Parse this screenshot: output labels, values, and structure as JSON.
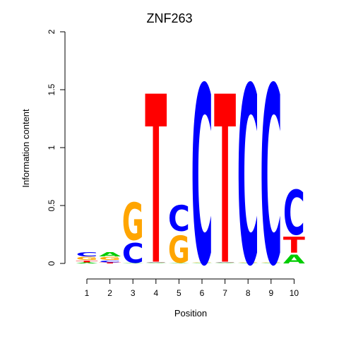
{
  "chart_data": {
    "type": "sequence-logo",
    "title": "ZNF263",
    "xlabel": "Position",
    "ylabel": "Information content",
    "ylim": [
      0,
      2
    ],
    "y_ticks": [
      "0",
      "0.5",
      "1",
      "1.5",
      "2"
    ],
    "positions": [
      "1",
      "2",
      "3",
      "4",
      "5",
      "6",
      "7",
      "8",
      "9",
      "10"
    ],
    "colors": {
      "A": "#00cc00",
      "C": "#0000ff",
      "G": "#ffa500",
      "T": "#ff0000"
    },
    "stacks": [
      [
        {
          "letter": "A",
          "height": 0.01
        },
        {
          "letter": "T",
          "height": 0.02
        },
        {
          "letter": "G",
          "height": 0.03
        },
        {
          "letter": "C",
          "height": 0.04
        }
      ],
      [
        {
          "letter": "T",
          "height": 0.01
        },
        {
          "letter": "C",
          "height": 0.02
        },
        {
          "letter": "G",
          "height": 0.03
        },
        {
          "letter": "A",
          "height": 0.04
        }
      ],
      [
        {
          "letter": "A",
          "height": 0.005
        },
        {
          "letter": "C",
          "height": 0.2
        },
        {
          "letter": "G",
          "height": 0.375
        }
      ],
      [
        {
          "letter": "A",
          "height": 0.005
        },
        {
          "letter": "C",
          "height": 0.005
        },
        {
          "letter": "G",
          "height": 0.005
        },
        {
          "letter": "T",
          "height": 1.7
        }
      ],
      [
        {
          "letter": "A",
          "height": 0.005
        },
        {
          "letter": "G",
          "height": 0.275
        },
        {
          "letter": "C",
          "height": 0.26
        }
      ],
      [
        {
          "letter": "A",
          "height": 0.005
        },
        {
          "letter": "G",
          "height": 0.005
        },
        {
          "letter": "C",
          "height": 1.8
        }
      ],
      [
        {
          "letter": "A",
          "height": 0.005
        },
        {
          "letter": "C",
          "height": 0.005
        },
        {
          "letter": "G",
          "height": 0.005
        },
        {
          "letter": "T",
          "height": 1.7
        }
      ],
      [
        {
          "letter": "A",
          "height": 0.005
        },
        {
          "letter": "G",
          "height": 0.005
        },
        {
          "letter": "C",
          "height": 1.8
        }
      ],
      [
        {
          "letter": "A",
          "height": 0.005
        },
        {
          "letter": "G",
          "height": 0.005
        },
        {
          "letter": "C",
          "height": 1.8
        }
      ],
      [
        {
          "letter": "A",
          "height": 0.09
        },
        {
          "letter": "T",
          "height": 0.16
        },
        {
          "letter": "C",
          "height": 0.45
        }
      ]
    ]
  }
}
